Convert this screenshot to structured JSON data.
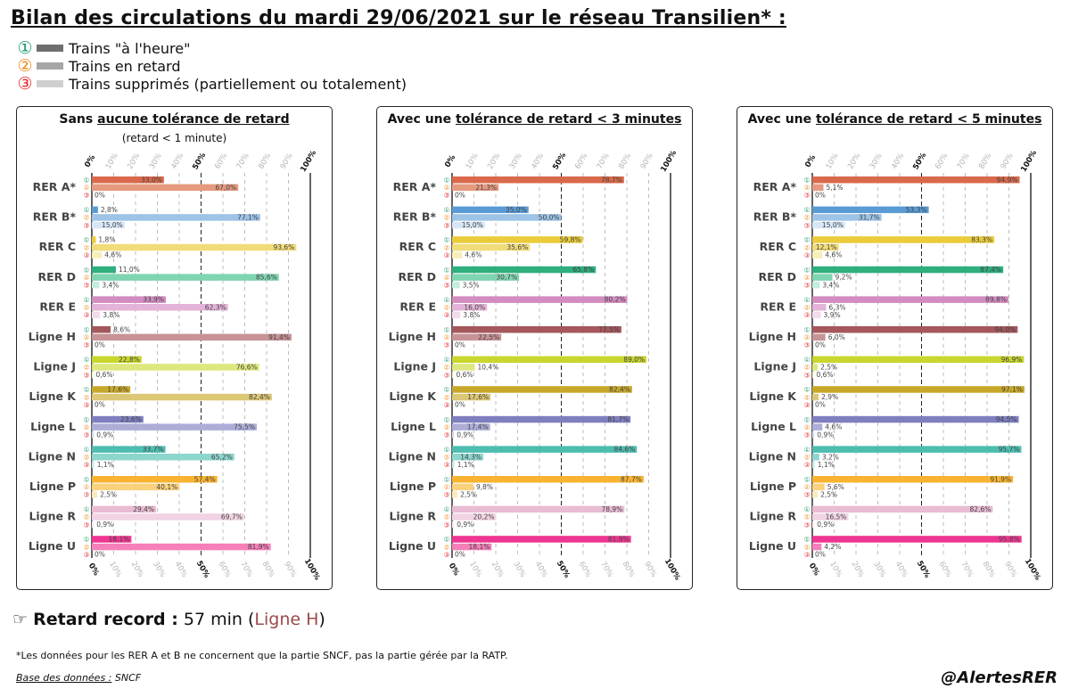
{
  "title": "Bilan des circulations du mardi 29/06/2021 sur le réseau Transilien* :",
  "legend": [
    {
      "num": "①",
      "num_color": "#1a9a6c",
      "color": "#6e6e6e",
      "label": "Trains \"à l'heure\""
    },
    {
      "num": "②",
      "num_color": "#f08a1c",
      "color": "#a6a6a6",
      "label": "Trains en retard"
    },
    {
      "num": "③",
      "num_color": "#e8262a",
      "color": "#cfcfcf",
      "label": "Trains supprimés (partiellement ou totalement)"
    }
  ],
  "record": {
    "label": "Retard record :",
    "value": "57 min (",
    "line": "Ligne H",
    "close": ")",
    "icon": "pointing-hand-icon"
  },
  "footnote": "*Les données pour les RER A et B ne concernent que la partie SNCF, pas la partie gérée par la RATP.",
  "source": {
    "label": "Base des données :",
    "value": "SNCF"
  },
  "signature": "@AlertesRER",
  "chart_data": [
    {
      "type": "bar",
      "title_plain": "Sans ",
      "title_underlined": "aucune tolérance de retard",
      "subtitle": "(retard < 1 minute)",
      "xlim": [
        0,
        100
      ],
      "ticks": [
        "0%",
        "10%",
        "20%",
        "30%",
        "40%",
        "50%",
        "60%",
        "70%",
        "80%",
        "90%",
        "100%"
      ],
      "markers": [
        "①",
        "②",
        "③"
      ],
      "categories": [
        "RER A*",
        "RER B*",
        "RER C",
        "RER D",
        "RER E",
        "Ligne H",
        "Ligne J",
        "Ligne K",
        "Ligne L",
        "Ligne N",
        "Ligne P",
        "Ligne R",
        "Ligne U"
      ],
      "series": [
        {
          "values": [
            33.0,
            2.8,
            1.8,
            11.0,
            33.9,
            8.6,
            22.8,
            17.6,
            23.6,
            33.7,
            57.4,
            29.4,
            18.1
          ],
          "labels": [
            "33,0%",
            "2,8%",
            "1,8%",
            "11,0%",
            "33,9%",
            "8,6%",
            "22,8%",
            "17,6%",
            "23,6%",
            "33,7%",
            "57,4%",
            "29,4%",
            "18,1%"
          ]
        },
        {
          "values": [
            67.0,
            77.1,
            93.6,
            85.6,
            62.3,
            91.4,
            76.6,
            82.4,
            75.5,
            65.2,
            40.1,
            69.7,
            81.9
          ],
          "labels": [
            "67,0%",
            "77,1%",
            "93,6%",
            "85,6%",
            "62,3%",
            "91,4%",
            "76,6%",
            "82,4%",
            "75,5%",
            "65,2%",
            "40,1%",
            "69,7%",
            "81,9%"
          ]
        },
        {
          "values": [
            0,
            15.0,
            4.6,
            3.4,
            3.8,
            0,
            0.6,
            0,
            0.9,
            1.1,
            2.5,
            0.9,
            0
          ],
          "labels": [
            "0%",
            "15,0%",
            "4,6%",
            "3,4%",
            "3,8%",
            "0%",
            "0,6%",
            "0%",
            "0,9%",
            "1,1%",
            "2,5%",
            "0,9%",
            "0%"
          ]
        }
      ]
    },
    {
      "type": "bar",
      "title_plain": "Avec une ",
      "title_underlined": "tolérance de retard < 3 minutes",
      "subtitle": "",
      "xlim": [
        0,
        100
      ],
      "ticks": [
        "0%",
        "10%",
        "20%",
        "30%",
        "40%",
        "50%",
        "60%",
        "70%",
        "80%",
        "90%",
        "100%"
      ],
      "markers": [
        "①",
        "②",
        "③"
      ],
      "categories": [
        "RER A*",
        "RER B*",
        "RER C",
        "RER D",
        "RER E",
        "Ligne H",
        "Ligne J",
        "Ligne K",
        "Ligne L",
        "Ligne N",
        "Ligne P",
        "Ligne R",
        "Ligne U"
      ],
      "series": [
        {
          "values": [
            78.7,
            35.0,
            59.8,
            65.8,
            80.2,
            77.5,
            89.0,
            82.4,
            81.7,
            84.6,
            87.7,
            78.9,
            81.9
          ],
          "labels": [
            "78,7%",
            "35,0%",
            "59,8%",
            "65,8%",
            "80,2%",
            "77,5%",
            "89,0%",
            "82,4%",
            "81,7%",
            "84,6%",
            "87,7%",
            "78,9%",
            "81,9%"
          ]
        },
        {
          "values": [
            21.3,
            50.0,
            35.6,
            30.7,
            16.0,
            22.5,
            10.4,
            17.6,
            17.4,
            14.3,
            9.8,
            20.2,
            18.1
          ],
          "labels": [
            "21,3%",
            "50,0%",
            "35,6%",
            "30,7%",
            "16,0%",
            "22,5%",
            "10,4%",
            "17,6%",
            "17,4%",
            "14,3%",
            "9,8%",
            "20,2%",
            "18,1%"
          ]
        },
        {
          "values": [
            0,
            15.0,
            4.6,
            3.5,
            3.8,
            0,
            0.6,
            0,
            0.9,
            1.1,
            2.5,
            0.9,
            0
          ],
          "labels": [
            "0%",
            "15,0%",
            "4,6%",
            "3,5%",
            "3,8%",
            "0%",
            "0,6%",
            "0%",
            "0,9%",
            "1,1%",
            "2,5%",
            "0,9%",
            "0%"
          ]
        }
      ]
    },
    {
      "type": "bar",
      "title_plain": "Avec une ",
      "title_underlined": "tolérance de retard < 5 minutes",
      "subtitle": "",
      "xlim": [
        0,
        100
      ],
      "ticks": [
        "0%",
        "10%",
        "20%",
        "30%",
        "40%",
        "50%",
        "60%",
        "70%",
        "80%",
        "90%",
        "100%"
      ],
      "markers": [
        "①",
        "②",
        "③"
      ],
      "categories": [
        "RER A*",
        "RER B*",
        "RER C",
        "RER D",
        "RER E",
        "Ligne H",
        "Ligne J",
        "Ligne K",
        "Ligne L",
        "Ligne N",
        "Ligne P",
        "Ligne R",
        "Ligne U"
      ],
      "series": [
        {
          "values": [
            94.9,
            53.3,
            83.3,
            87.4,
            89.8,
            94.0,
            96.9,
            97.1,
            94.5,
            95.7,
            91.9,
            82.6,
            95.8
          ],
          "labels": [
            "94,9%",
            "53,3%",
            "83,3%",
            "87,4%",
            "89,8%",
            "94,0%",
            "96,9%",
            "97,1%",
            "94,5%",
            "95,7%",
            "91,9%",
            "82,6%",
            "95,8%"
          ]
        },
        {
          "values": [
            5.1,
            31.7,
            12.1,
            9.2,
            6.3,
            6.0,
            2.5,
            2.9,
            4.6,
            3.2,
            5.6,
            16.5,
            4.2
          ],
          "labels": [
            "5,1%",
            "31,7%",
            "12,1%",
            "9,2%",
            "6,3%",
            "6,0%",
            "2,5%",
            "2,9%",
            "4,6%",
            "3,2%",
            "5,6%",
            "16,5%",
            "4,2%"
          ]
        },
        {
          "values": [
            0,
            15.0,
            4.6,
            3.4,
            3.9,
            0,
            0.6,
            0,
            0.9,
            1.1,
            2.5,
            0.9,
            0
          ],
          "labels": [
            "0%",
            "15,0%",
            "4,6%",
            "3,4%",
            "3,9%",
            "0%",
            "0,6%",
            "0%",
            "0,9%",
            "1,1%",
            "2,5%",
            "0,9%",
            "0%"
          ]
        }
      ]
    }
  ],
  "line_colors": [
    [
      "#d9694a",
      "#e59a7f",
      "#f3d6cb"
    ],
    [
      "#5b9bd5",
      "#9dc3e6",
      "#d6e6f5"
    ],
    [
      "#eacb3a",
      "#f1dc7a",
      "#f8eeb9"
    ],
    [
      "#2eaf7d",
      "#7fd4b1",
      "#c5ecdc"
    ],
    [
      "#d28cc0",
      "#e3b4d7",
      "#f2dcec"
    ],
    [
      "#a4585c",
      "#c79396",
      "#e6cccd"
    ],
    [
      "#c8d62e",
      "#dde77d",
      "#eef4c0"
    ],
    [
      "#c8a82a",
      "#dcc775",
      "#efe4bc"
    ],
    [
      "#7f7fc0",
      "#adadd8",
      "#d9d9ee"
    ],
    [
      "#4dbdb0",
      "#8dd6cd",
      "#cbede9"
    ],
    [
      "#f8b431",
      "#fad17c",
      "#fde8be"
    ],
    [
      "#e9bcd3",
      "#f1d3e3",
      "#f8eaf1"
    ],
    [
      "#ee3591",
      "#f47fb9",
      "#fac5df"
    ]
  ],
  "marker_colors": [
    "#1a9a6c",
    "#f08a1c",
    "#e8262a"
  ]
}
